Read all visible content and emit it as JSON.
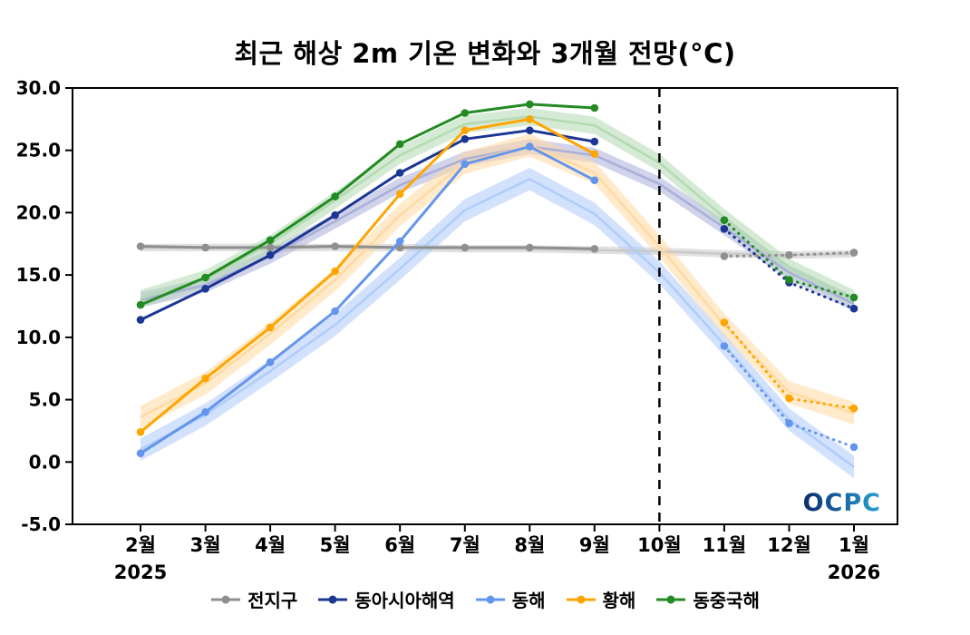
{
  "chart_data": {
    "type": "line",
    "title": "최근 해상 2m 기온 변화와 3개월 전망(°C)",
    "watermark": "OCPC",
    "watermark_colors": [
      "#0b2a6b",
      "#27a3d8"
    ],
    "x_labels": [
      "2월",
      "3월",
      "4월",
      "5월",
      "6월",
      "7월",
      "8월",
      "9월",
      "10월",
      "11월",
      "12월",
      "1월"
    ],
    "year_labels": [
      {
        "index": 0,
        "text": "2025"
      },
      {
        "index": 11,
        "text": "2026"
      }
    ],
    "ylim": [
      -5.0,
      30.0
    ],
    "yticks": [
      -5.0,
      0.0,
      5.0,
      10.0,
      15.0,
      20.0,
      25.0,
      30.0
    ],
    "divider_index": 8,
    "legend_position": "bottom-center",
    "grid": false,
    "series": [
      {
        "name": "전지구",
        "color": "#8f8f8f",
        "band_color": "#c8c8c8",
        "observed": [
          17.3,
          17.2,
          17.2,
          17.3,
          17.2,
          17.2,
          17.2,
          17.1
        ],
        "forecast_x": [
          9,
          10,
          11
        ],
        "forecast": [
          16.5,
          16.6,
          16.8
        ],
        "climatology": [
          17.2,
          17.2,
          17.2,
          17.2,
          17.2,
          17.1,
          17.1,
          17.0,
          16.9,
          16.7,
          16.6,
          16.7
        ],
        "band_halfwidth": 0.3
      },
      {
        "name": "동아시아해역",
        "color": "#1c3694",
        "band_color": "#a9aed8",
        "observed": [
          11.4,
          13.9,
          16.6,
          19.8,
          23.2,
          25.9,
          26.6,
          25.7
        ],
        "forecast_x": [
          9,
          10,
          11
        ],
        "forecast": [
          18.7,
          14.4,
          12.3
        ],
        "climatology": [
          13.0,
          14.2,
          16.5,
          19.3,
          22.2,
          24.3,
          25.3,
          24.6,
          22.3,
          18.8,
          15.2,
          12.7
        ],
        "band_halfwidth": 0.6
      },
      {
        "name": "동해",
        "color": "#6495ed",
        "band_color": "#aecbfa",
        "observed": [
          0.7,
          4.0,
          8.0,
          12.1,
          17.7,
          23.9,
          25.3,
          22.6
        ],
        "forecast_x": [
          9,
          10,
          11
        ],
        "forecast": [
          9.3,
          3.1,
          1.2
        ],
        "climatology": [
          1.0,
          3.8,
          7.3,
          11.0,
          15.5,
          20.2,
          22.7,
          19.9,
          15.2,
          9.4,
          3.4,
          -0.4
        ],
        "band_halfwidth": 0.9
      },
      {
        "name": "황해",
        "color": "#ffa500",
        "band_color": "#ffd9a0",
        "observed": [
          2.4,
          6.7,
          10.8,
          15.3,
          21.5,
          26.6,
          27.5,
          24.7
        ],
        "forecast_x": [
          9,
          10,
          11
        ],
        "forecast": [
          11.2,
          5.1,
          4.3
        ],
        "climatology": [
          3.6,
          6.3,
          10.3,
          14.6,
          19.8,
          24.0,
          25.4,
          23.2,
          17.3,
          11.0,
          5.6,
          3.9
        ],
        "band_halfwidth": 0.9
      },
      {
        "name": "동중국해",
        "color": "#228b22",
        "band_color": "#b2d9b2",
        "observed": [
          12.6,
          14.8,
          17.8,
          21.3,
          25.5,
          28.0,
          28.7,
          28.4
        ],
        "forecast_x": [
          9,
          10,
          11
        ],
        "forecast": [
          19.4,
          14.6,
          13.2
        ],
        "climatology": [
          13.1,
          14.7,
          17.5,
          21.0,
          24.6,
          27.1,
          27.7,
          27.0,
          24.0,
          19.6,
          15.6,
          13.1
        ],
        "band_halfwidth": 0.7
      }
    ]
  }
}
